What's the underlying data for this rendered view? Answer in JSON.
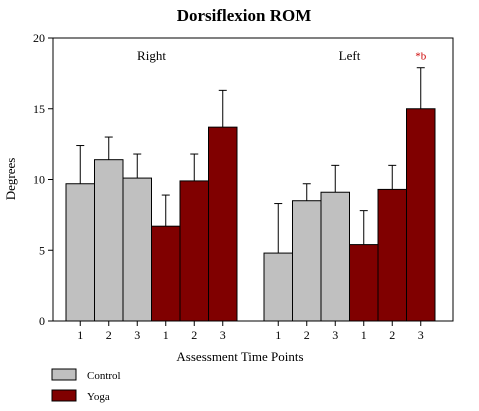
{
  "chart_data": {
    "type": "bar",
    "title": "Dorsiflexion ROM",
    "xlabel": "Assessment Time Points",
    "ylabel": "Degrees",
    "ylim": [
      0,
      20
    ],
    "yticks": [
      0,
      5,
      10,
      15,
      20
    ],
    "grid": false,
    "legend_position": "bottom-left",
    "colors": {
      "control": "#c0c0c0",
      "yoga": "#800000",
      "annotation": "#cc0000"
    },
    "groups": [
      {
        "label": "Right",
        "series": [
          {
            "name": "Control",
            "x": [
              "1",
              "2",
              "3"
            ],
            "values": [
              9.7,
              11.4,
              10.1
            ],
            "error": [
              2.7,
              1.6,
              1.7
            ]
          },
          {
            "name": "Yoga",
            "x": [
              "1",
              "2",
              "3"
            ],
            "values": [
              6.7,
              9.9,
              13.7
            ],
            "error": [
              2.2,
              1.9,
              2.6
            ]
          }
        ]
      },
      {
        "label": "Left",
        "series": [
          {
            "name": "Control",
            "x": [
              "1",
              "2",
              "3"
            ],
            "values": [
              4.8,
              8.5,
              9.1
            ],
            "error": [
              3.5,
              1.2,
              1.9
            ]
          },
          {
            "name": "Yoga",
            "x": [
              "1",
              "2",
              "3"
            ],
            "values": [
              5.4,
              9.3,
              15.0
            ],
            "error": [
              2.4,
              1.7,
              2.9
            ]
          }
        ]
      }
    ],
    "annotations": [
      {
        "text": "*b",
        "group": "Left",
        "series": "Yoga",
        "x": "3"
      }
    ],
    "legend": [
      {
        "name": "Control",
        "color": "#c0c0c0"
      },
      {
        "name": "Yoga",
        "color": "#800000"
      }
    ]
  }
}
